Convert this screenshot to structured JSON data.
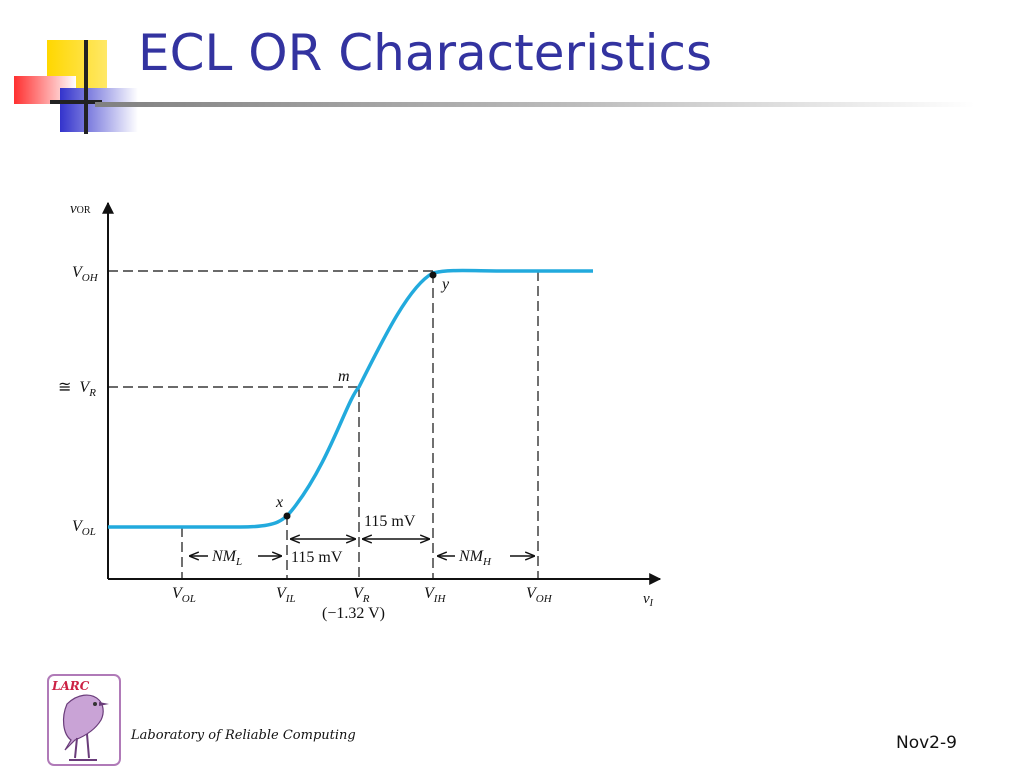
{
  "slide": {
    "title": "ECL OR Characteristics",
    "footer_lab": "Laboratory of Reliable Computing",
    "slide_number": "Nov2-9",
    "logo_text": "LARC"
  },
  "diagram": {
    "y_axis_var": "v",
    "y_axis_sub": "OR",
    "x_axis_var": "v",
    "x_axis_sub": "I",
    "y_ticks": [
      {
        "approx": "",
        "main": "V",
        "sub": "OH"
      },
      {
        "approx": "≅",
        "main": "V",
        "sub": "R"
      },
      {
        "approx": "",
        "main": "V",
        "sub": "OL"
      }
    ],
    "x_ticks": [
      {
        "main": "V",
        "sub": "OL"
      },
      {
        "main": "V",
        "sub": "IL"
      },
      {
        "main": "V",
        "sub": "R"
      },
      {
        "main": "V",
        "sub": "IH"
      },
      {
        "main": "V",
        "sub": "OH"
      }
    ],
    "vr_value": "(−1.32 V)",
    "points": [
      "x",
      "m",
      "y"
    ],
    "nm_low": {
      "main": "NM",
      "sub": "L"
    },
    "nm_high": {
      "main": "NM",
      "sub": "H"
    },
    "delta_left": "115 mV",
    "delta_right": "115 mV"
  },
  "colors": {
    "title": "#3333a0",
    "curve": "#22aadd",
    "deco_yellow": "#ffd700",
    "deco_red": "#ff3030",
    "deco_blue": "#3333cc"
  }
}
